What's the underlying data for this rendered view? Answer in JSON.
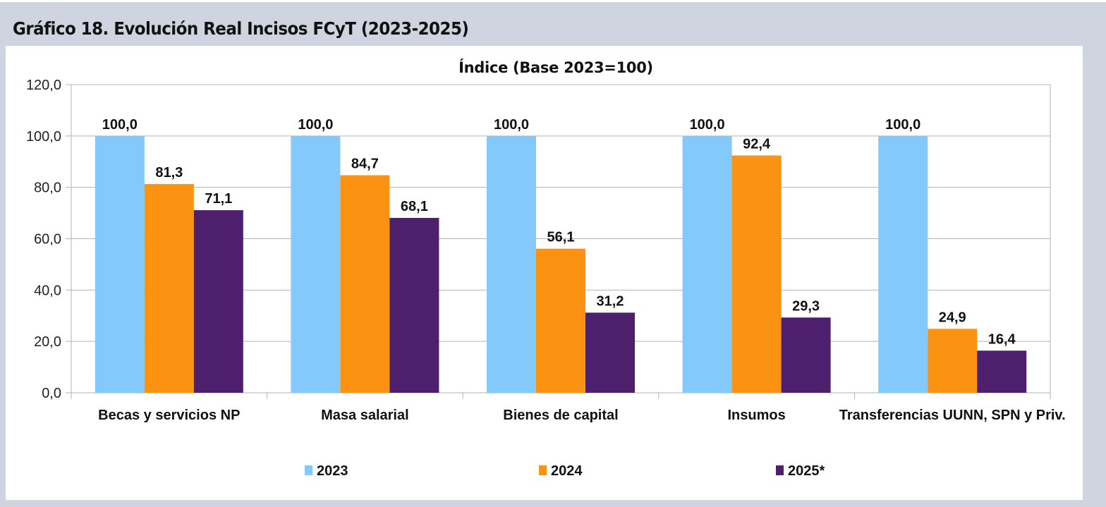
{
  "figure_title": "Gráfico 18. Evolución Real Incisos FCyT (2023-2025)",
  "chart_data": {
    "type": "bar",
    "title": "Índice (Base 2023=100)",
    "xlabel": "",
    "ylabel": "",
    "ylim": [
      0,
      120
    ],
    "yticks": [
      0,
      20,
      40,
      60,
      80,
      100,
      120
    ],
    "ytick_labels": [
      "0,0",
      "20,0",
      "40,0",
      "60,0",
      "80,0",
      "100,0",
      "120,0"
    ],
    "grid": true,
    "legend_position": "bottom",
    "categories": [
      "Becas y servicios NP",
      "Masa salarial",
      "Bienes de capital",
      "Insumos",
      "Transferencias UUNN, SPN y Priv."
    ],
    "series": [
      {
        "name": "2023",
        "color": "#83c9fc",
        "values": [
          100.0,
          100.0,
          100.0,
          100.0,
          100.0
        ],
        "labels": [
          "100,0",
          "100,0",
          "100,0",
          "100,0",
          "100,0"
        ]
      },
      {
        "name": "2024",
        "color": "#fb9211",
        "values": [
          81.3,
          84.7,
          56.1,
          92.4,
          24.9
        ],
        "labels": [
          "81,3",
          "84,7",
          "56,1",
          "92,4",
          "24,9"
        ]
      },
      {
        "name": "2025*",
        "color": "#4d1f6c",
        "values": [
          71.1,
          68.1,
          31.2,
          29.3,
          16.4
        ],
        "labels": [
          "71,1",
          "68,1",
          "31,2",
          "29,3",
          "16,4"
        ]
      }
    ]
  }
}
